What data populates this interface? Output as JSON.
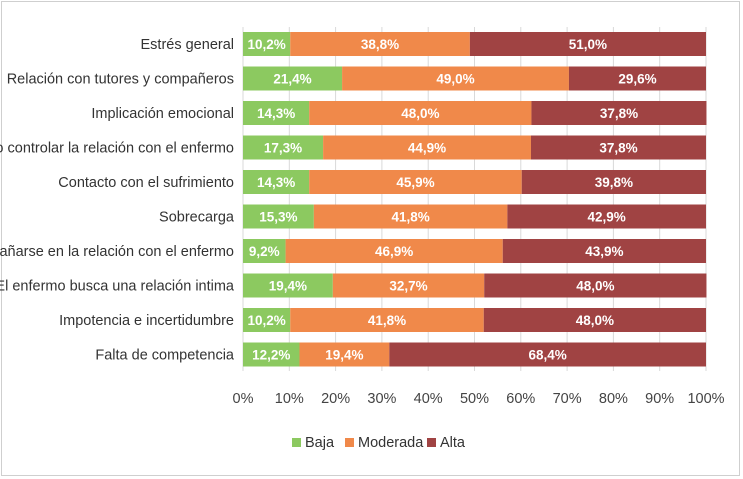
{
  "chart_data": {
    "type": "bar",
    "orientation": "horizontal",
    "stacked": true,
    "categories": [
      "Estrés general",
      "Relación con tutores y compañeros",
      "Implicación emocional",
      "No controlar la relación con el enfermo",
      "Contacto con el sufrimiento",
      "Sobrecarga",
      "Dañarse en la relación con el enfermo",
      "El enfermo busca una relación intima",
      "Impotencia e incertidumbre",
      "Falta de competencia"
    ],
    "series": [
      {
        "name": "Baja",
        "color": "#8cc960",
        "values": [
          10.2,
          21.4,
          14.3,
          17.3,
          14.3,
          15.3,
          9.2,
          19.4,
          10.2,
          12.2
        ],
        "labels": [
          "10,2%",
          "21,4%",
          "14,3%",
          "17,3%",
          "14,3%",
          "15,3%",
          "9,2%",
          "19,4%",
          "10,2%",
          "12,2%"
        ]
      },
      {
        "name": "Moderada",
        "color": "#f0894a",
        "values": [
          38.8,
          49.0,
          48.0,
          44.9,
          45.9,
          41.8,
          46.9,
          32.7,
          41.8,
          19.4
        ],
        "labels": [
          "38,8%",
          "49,0%",
          "48,0%",
          "44,9%",
          "45,9%",
          "41,8%",
          "46,9%",
          "32,7%",
          "41,8%",
          "19,4%"
        ]
      },
      {
        "name": "Alta",
        "color": "#a04343",
        "values": [
          51.0,
          29.6,
          37.8,
          37.8,
          39.8,
          42.9,
          43.9,
          48.0,
          48.0,
          68.4
        ],
        "labels": [
          "51,0%",
          "29,6%",
          "37,8%",
          "37,8%",
          "39,8%",
          "42,9%",
          "43,9%",
          "48,0%",
          "48,0%",
          "68,4%"
        ]
      }
    ],
    "xlim": [
      0,
      100
    ],
    "xticks": [
      "0%",
      "10%",
      "20%",
      "30%",
      "40%",
      "50%",
      "60%",
      "70%",
      "80%",
      "90%",
      "100%"
    ],
    "grid": true,
    "legend_position": "bottom",
    "title": "",
    "xlabel": "",
    "ylabel": ""
  }
}
